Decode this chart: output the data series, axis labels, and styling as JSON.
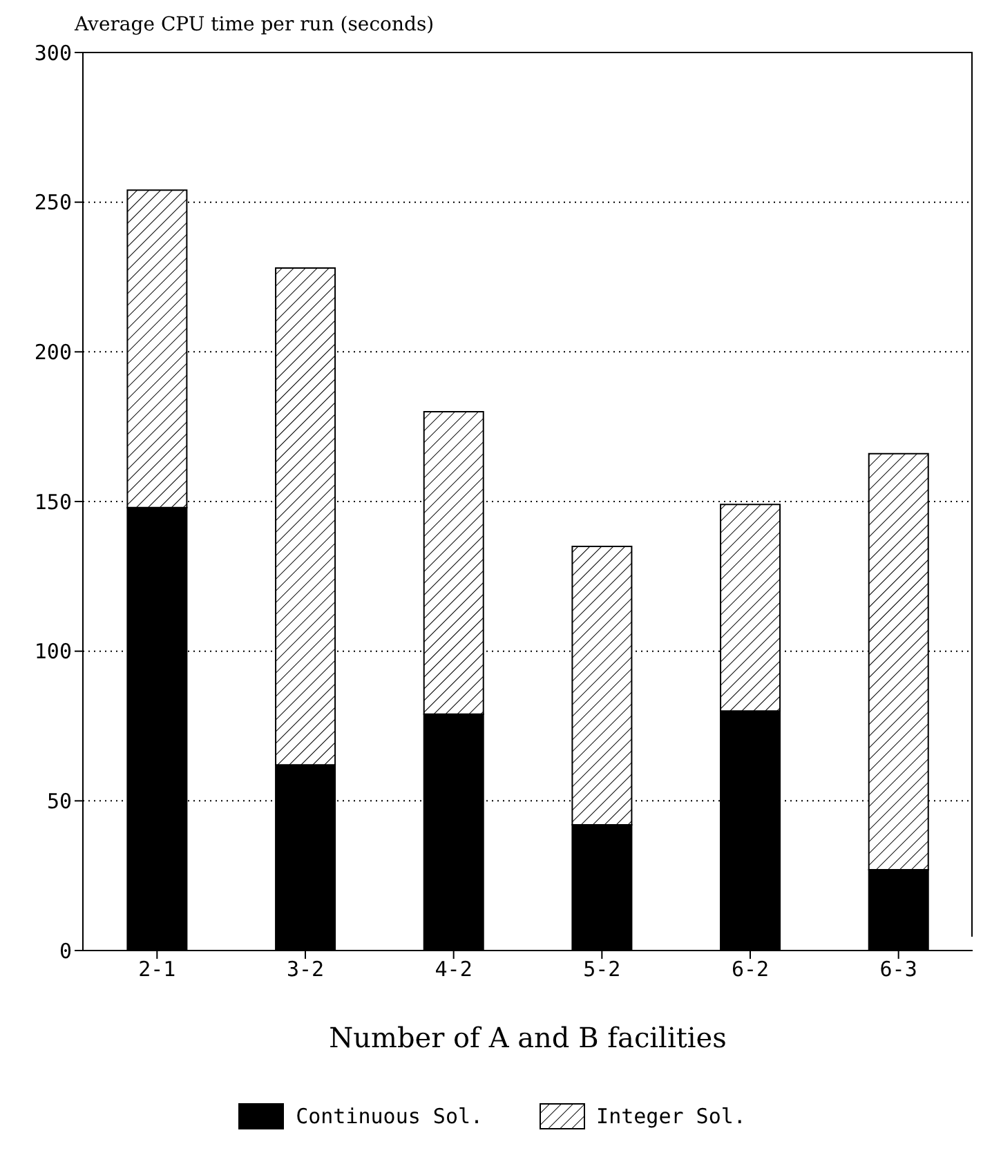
{
  "chart_data": {
    "type": "bar",
    "ylabel": "Average CPU time per run (seconds)",
    "xlabel": "Number of A and B facilities",
    "categories": [
      "2-1",
      "3-2",
      "4-2",
      "5-2",
      "6-2",
      "6-3"
    ],
    "stacked": true,
    "series": [
      {
        "name": "Continuous Sol.",
        "color": "#000000",
        "values": [
          148,
          62,
          79,
          42,
          80,
          27
        ]
      },
      {
        "name": "Integer Sol.",
        "color": "#000000",
        "values": [
          106,
          166,
          101,
          93,
          69,
          139
        ]
      }
    ],
    "ylim": [
      0,
      300
    ],
    "yticks": [
      0,
      50,
      100,
      150,
      200,
      250,
      300
    ],
    "grid": "y",
    "legend": "bottom"
  }
}
